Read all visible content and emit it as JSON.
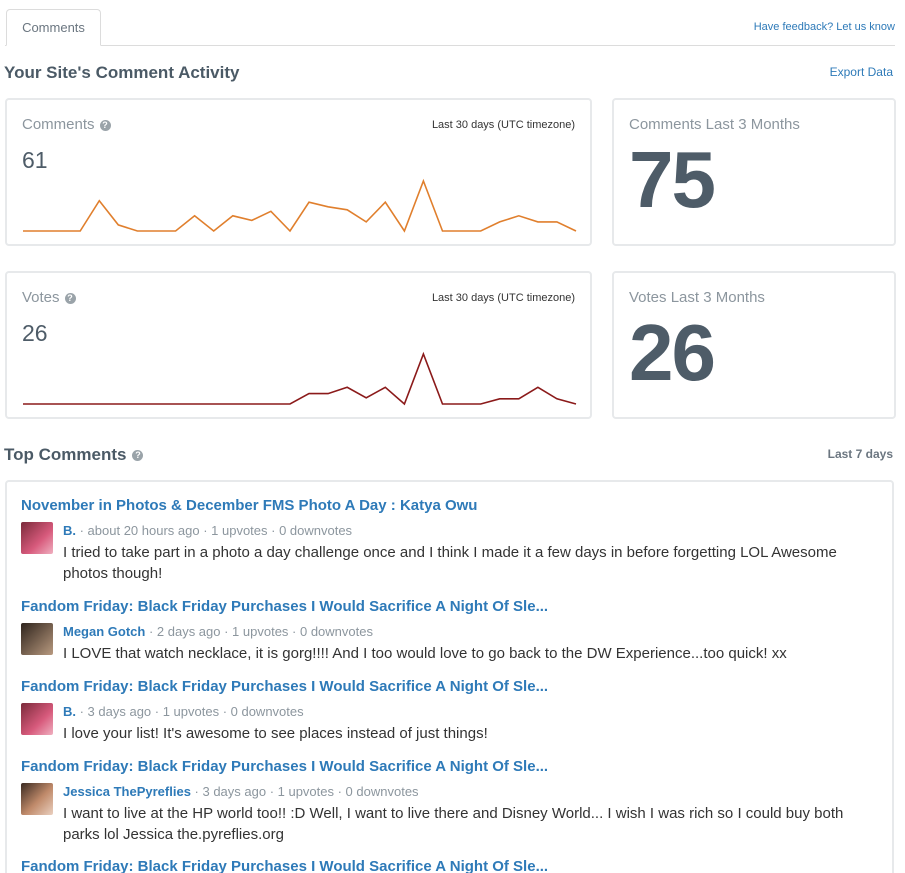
{
  "tabs": {
    "comments": "Comments"
  },
  "feedback_link": "Have feedback? Let us know",
  "activity": {
    "title": "Your Site's Comment Activity",
    "export_label": "Export Data",
    "comments_card": {
      "label": "Comments",
      "period": "Last 30 days (UTC timezone)",
      "count": "61",
      "series": [
        0,
        0,
        0,
        0,
        2,
        0.4,
        0,
        0,
        0,
        1,
        0,
        1,
        0.7,
        1.3,
        0,
        1.9,
        1.6,
        1.4,
        0.6,
        1.9,
        0,
        3.3,
        0,
        0,
        0,
        0.6,
        1,
        0.6,
        0.6,
        0
      ],
      "color": "#e07f2d"
    },
    "comments_total": {
      "label": "Comments Last 3 Months",
      "value": "75"
    },
    "votes_card": {
      "label": "Votes",
      "period": "Last 30 days (UTC timezone)",
      "count": "26",
      "series": [
        0,
        0,
        0,
        0,
        0,
        0,
        0,
        0,
        0,
        0,
        0,
        0,
        0,
        0,
        0,
        1,
        1,
        1.6,
        0.6,
        1.6,
        0,
        4.8,
        0,
        0,
        0,
        0.5,
        0.5,
        1.6,
        0.5,
        0
      ],
      "color": "#8b1a1a"
    },
    "votes_total": {
      "label": "Votes Last 3 Months",
      "value": "26"
    }
  },
  "top_comments": {
    "title": "Top Comments",
    "period": "Last 7 days",
    "items": [
      {
        "post_title": "November in Photos & December FMS Photo A Day : Katya Owu",
        "author": "B.",
        "meta": " · about 20 hours ago · 1 upvotes · 0 downvotes",
        "text": "I tried to take part in a photo a day challenge once and I think I made it a few days in before forgetting LOL Awesome photos though!",
        "avatar_color": "#c24a6a"
      },
      {
        "post_title": "Fandom Friday: Black Friday Purchases I Would Sacrifice A Night Of Sle...",
        "author": "Megan Gotch",
        "meta": " · 2 days ago · 1 upvotes · 0 downvotes",
        "text": "I LOVE that watch necklace, it is gorg!!!! And I too would love to go back to the DW Experience...too quick! xx",
        "avatar_color": "#5a4a3e"
      },
      {
        "post_title": "Fandom Friday: Black Friday Purchases I Would Sacrifice A Night Of Sle...",
        "author": "B.",
        "meta": " · 3 days ago · 1 upvotes · 0 downvotes",
        "text": "I love your list! It's awesome to see places instead of just things!",
        "avatar_color": "#c24a6a"
      },
      {
        "post_title": "Fandom Friday: Black Friday Purchases I Would Sacrifice A Night Of Sle...",
        "author": "Jessica ThePyreflies",
        "meta": " · 3 days ago · 1 upvotes · 0 downvotes",
        "text": "I want to live at the HP world too!! :D Well, I want to live there and Disney World... I wish I was rich so I could buy both parks lol Jessica the.pyreflies.org",
        "avatar_color": "#a07058"
      },
      {
        "post_title": "Fandom Friday: Black Friday Purchases I Would Sacrifice A Night Of Sle...",
        "author": "",
        "meta": "",
        "text": "",
        "avatar_color": ""
      }
    ]
  }
}
